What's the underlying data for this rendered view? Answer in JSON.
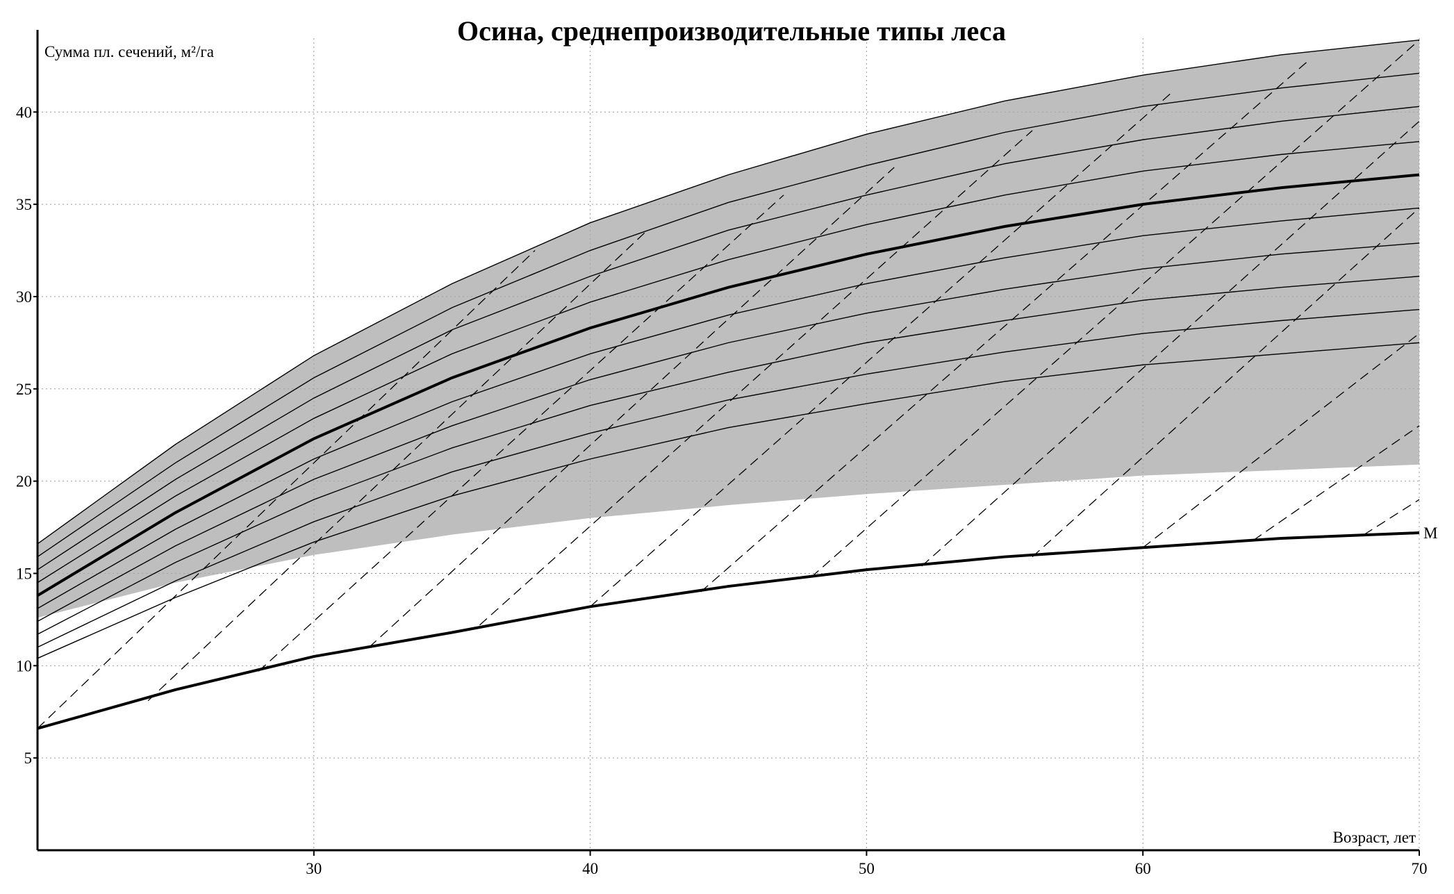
{
  "chart_data": {
    "type": "line",
    "title": "Осина, среднепроизводительные типы леса",
    "x_label": "Возраст, лет",
    "y_label": "Сумма пл. сечений, м²/га",
    "xlim": [
      20,
      70
    ],
    "xticks": [
      30,
      40,
      50,
      60,
      70
    ],
    "ylim": [
      0,
      44
    ],
    "yticks": [
      5,
      10,
      15,
      20,
      25,
      30,
      35,
      40
    ],
    "grid": true,
    "x": [
      20,
      25,
      30,
      35,
      40,
      45,
      50,
      55,
      60,
      65,
      70
    ],
    "band": {
      "color": "#a8a8a8",
      "upper": [
        16.6,
        22.0,
        26.8,
        30.7,
        34.0,
        36.6,
        38.8,
        40.6,
        42.0,
        43.1,
        43.9
      ],
      "lower": [
        12.6,
        14.5,
        16.0,
        17.1,
        18.0,
        18.7,
        19.3,
        19.8,
        20.3,
        20.6,
        20.9
      ]
    },
    "series": [
      {
        "color": "#000000",
        "width": 1.4,
        "values": [
          16.6,
          22.0,
          26.8,
          30.7,
          34.0,
          36.6,
          38.8,
          40.6,
          42.0,
          43.1,
          43.9
        ]
      },
      {
        "color": "#000000",
        "width": 1.4,
        "values": [
          15.9,
          21.0,
          25.6,
          29.4,
          32.5,
          35.1,
          37.1,
          38.9,
          40.3,
          41.3,
          42.1
        ]
      },
      {
        "color": "#000000",
        "width": 1.4,
        "values": [
          15.2,
          20.1,
          24.5,
          28.2,
          31.1,
          33.6,
          35.5,
          37.2,
          38.5,
          39.5,
          40.3
        ]
      },
      {
        "color": "#000000",
        "width": 1.4,
        "values": [
          14.5,
          19.2,
          23.4,
          26.9,
          29.7,
          32.0,
          33.9,
          35.5,
          36.8,
          37.7,
          38.4
        ]
      },
      {
        "color": "#000000",
        "width": 4,
        "values": [
          13.8,
          18.3,
          22.3,
          25.6,
          28.3,
          30.5,
          32.3,
          33.8,
          35.0,
          35.9,
          36.6
        ]
      },
      {
        "color": "#000000",
        "width": 1.4,
        "values": [
          13.1,
          17.4,
          21.2,
          24.3,
          26.9,
          29.0,
          30.7,
          32.1,
          33.3,
          34.1,
          34.8
        ]
      },
      {
        "color": "#000000",
        "width": 1.4,
        "values": [
          12.4,
          16.5,
          20.1,
          23.0,
          25.5,
          27.5,
          29.1,
          30.4,
          31.5,
          32.3,
          32.9
        ]
      },
      {
        "color": "#000000",
        "width": 1.4,
        "values": [
          11.7,
          15.6,
          19.0,
          21.8,
          24.1,
          25.9,
          27.5,
          28.7,
          29.8,
          30.5,
          31.1
        ]
      },
      {
        "color": "#000000",
        "width": 1.4,
        "values": [
          11.0,
          14.6,
          17.8,
          20.5,
          22.6,
          24.4,
          25.8,
          27.0,
          28.0,
          28.7,
          29.3
        ]
      },
      {
        "color": "#000000",
        "width": 1.4,
        "values": [
          10.4,
          13.7,
          16.7,
          19.2,
          21.2,
          22.9,
          24.2,
          25.4,
          26.3,
          26.9,
          27.5
        ]
      },
      {
        "name": "М",
        "color": "#000000",
        "width": 4,
        "values": [
          6.6,
          8.7,
          10.5,
          11.8,
          13.2,
          14.3,
          15.2,
          15.9,
          16.4,
          16.9,
          17.2
        ]
      },
      {
        "color": "#000000",
        "width": 1.3,
        "dash": true,
        "x": [
          20,
          38
        ],
        "values": [
          6.6,
          32.5
        ]
      },
      {
        "color": "#000000",
        "width": 1.3,
        "dash": true,
        "x": [
          24,
          42
        ],
        "values": [
          8.1,
          33.5
        ]
      },
      {
        "color": "#000000",
        "width": 1.3,
        "dash": true,
        "x": [
          28,
          47
        ],
        "values": [
          9.7,
          35.5
        ]
      },
      {
        "color": "#000000",
        "width": 1.3,
        "dash": true,
        "x": [
          32,
          51
        ],
        "values": [
          11.0,
          37.0
        ]
      },
      {
        "color": "#000000",
        "width": 1.3,
        "dash": true,
        "x": [
          36,
          56
        ],
        "values": [
          12.2,
          39.0
        ]
      },
      {
        "color": "#000000",
        "width": 1.3,
        "dash": true,
        "x": [
          40,
          61
        ],
        "values": [
          13.2,
          41.0
        ]
      },
      {
        "color": "#000000",
        "width": 1.3,
        "dash": true,
        "x": [
          44,
          66
        ],
        "values": [
          14.0,
          42.8
        ]
      },
      {
        "color": "#000000",
        "width": 1.3,
        "dash": true,
        "x": [
          48,
          70
        ],
        "values": [
          14.8,
          43.9
        ]
      },
      {
        "color": "#000000",
        "width": 1.3,
        "dash": true,
        "x": [
          52,
          70
        ],
        "values": [
          15.4,
          39.5
        ]
      },
      {
        "color": "#000000",
        "width": 1.3,
        "dash": true,
        "x": [
          56,
          70
        ],
        "values": [
          15.9,
          34.8
        ]
      },
      {
        "color": "#000000",
        "width": 1.3,
        "dash": true,
        "x": [
          60,
          70
        ],
        "values": [
          16.4,
          28.0
        ]
      },
      {
        "color": "#000000",
        "width": 1.3,
        "dash": true,
        "x": [
          64,
          70
        ],
        "values": [
          16.8,
          23.0
        ]
      },
      {
        "color": "#000000",
        "width": 1.3,
        "dash": true,
        "x": [
          68,
          70
        ],
        "values": [
          17.1,
          19.0
        ]
      }
    ]
  }
}
